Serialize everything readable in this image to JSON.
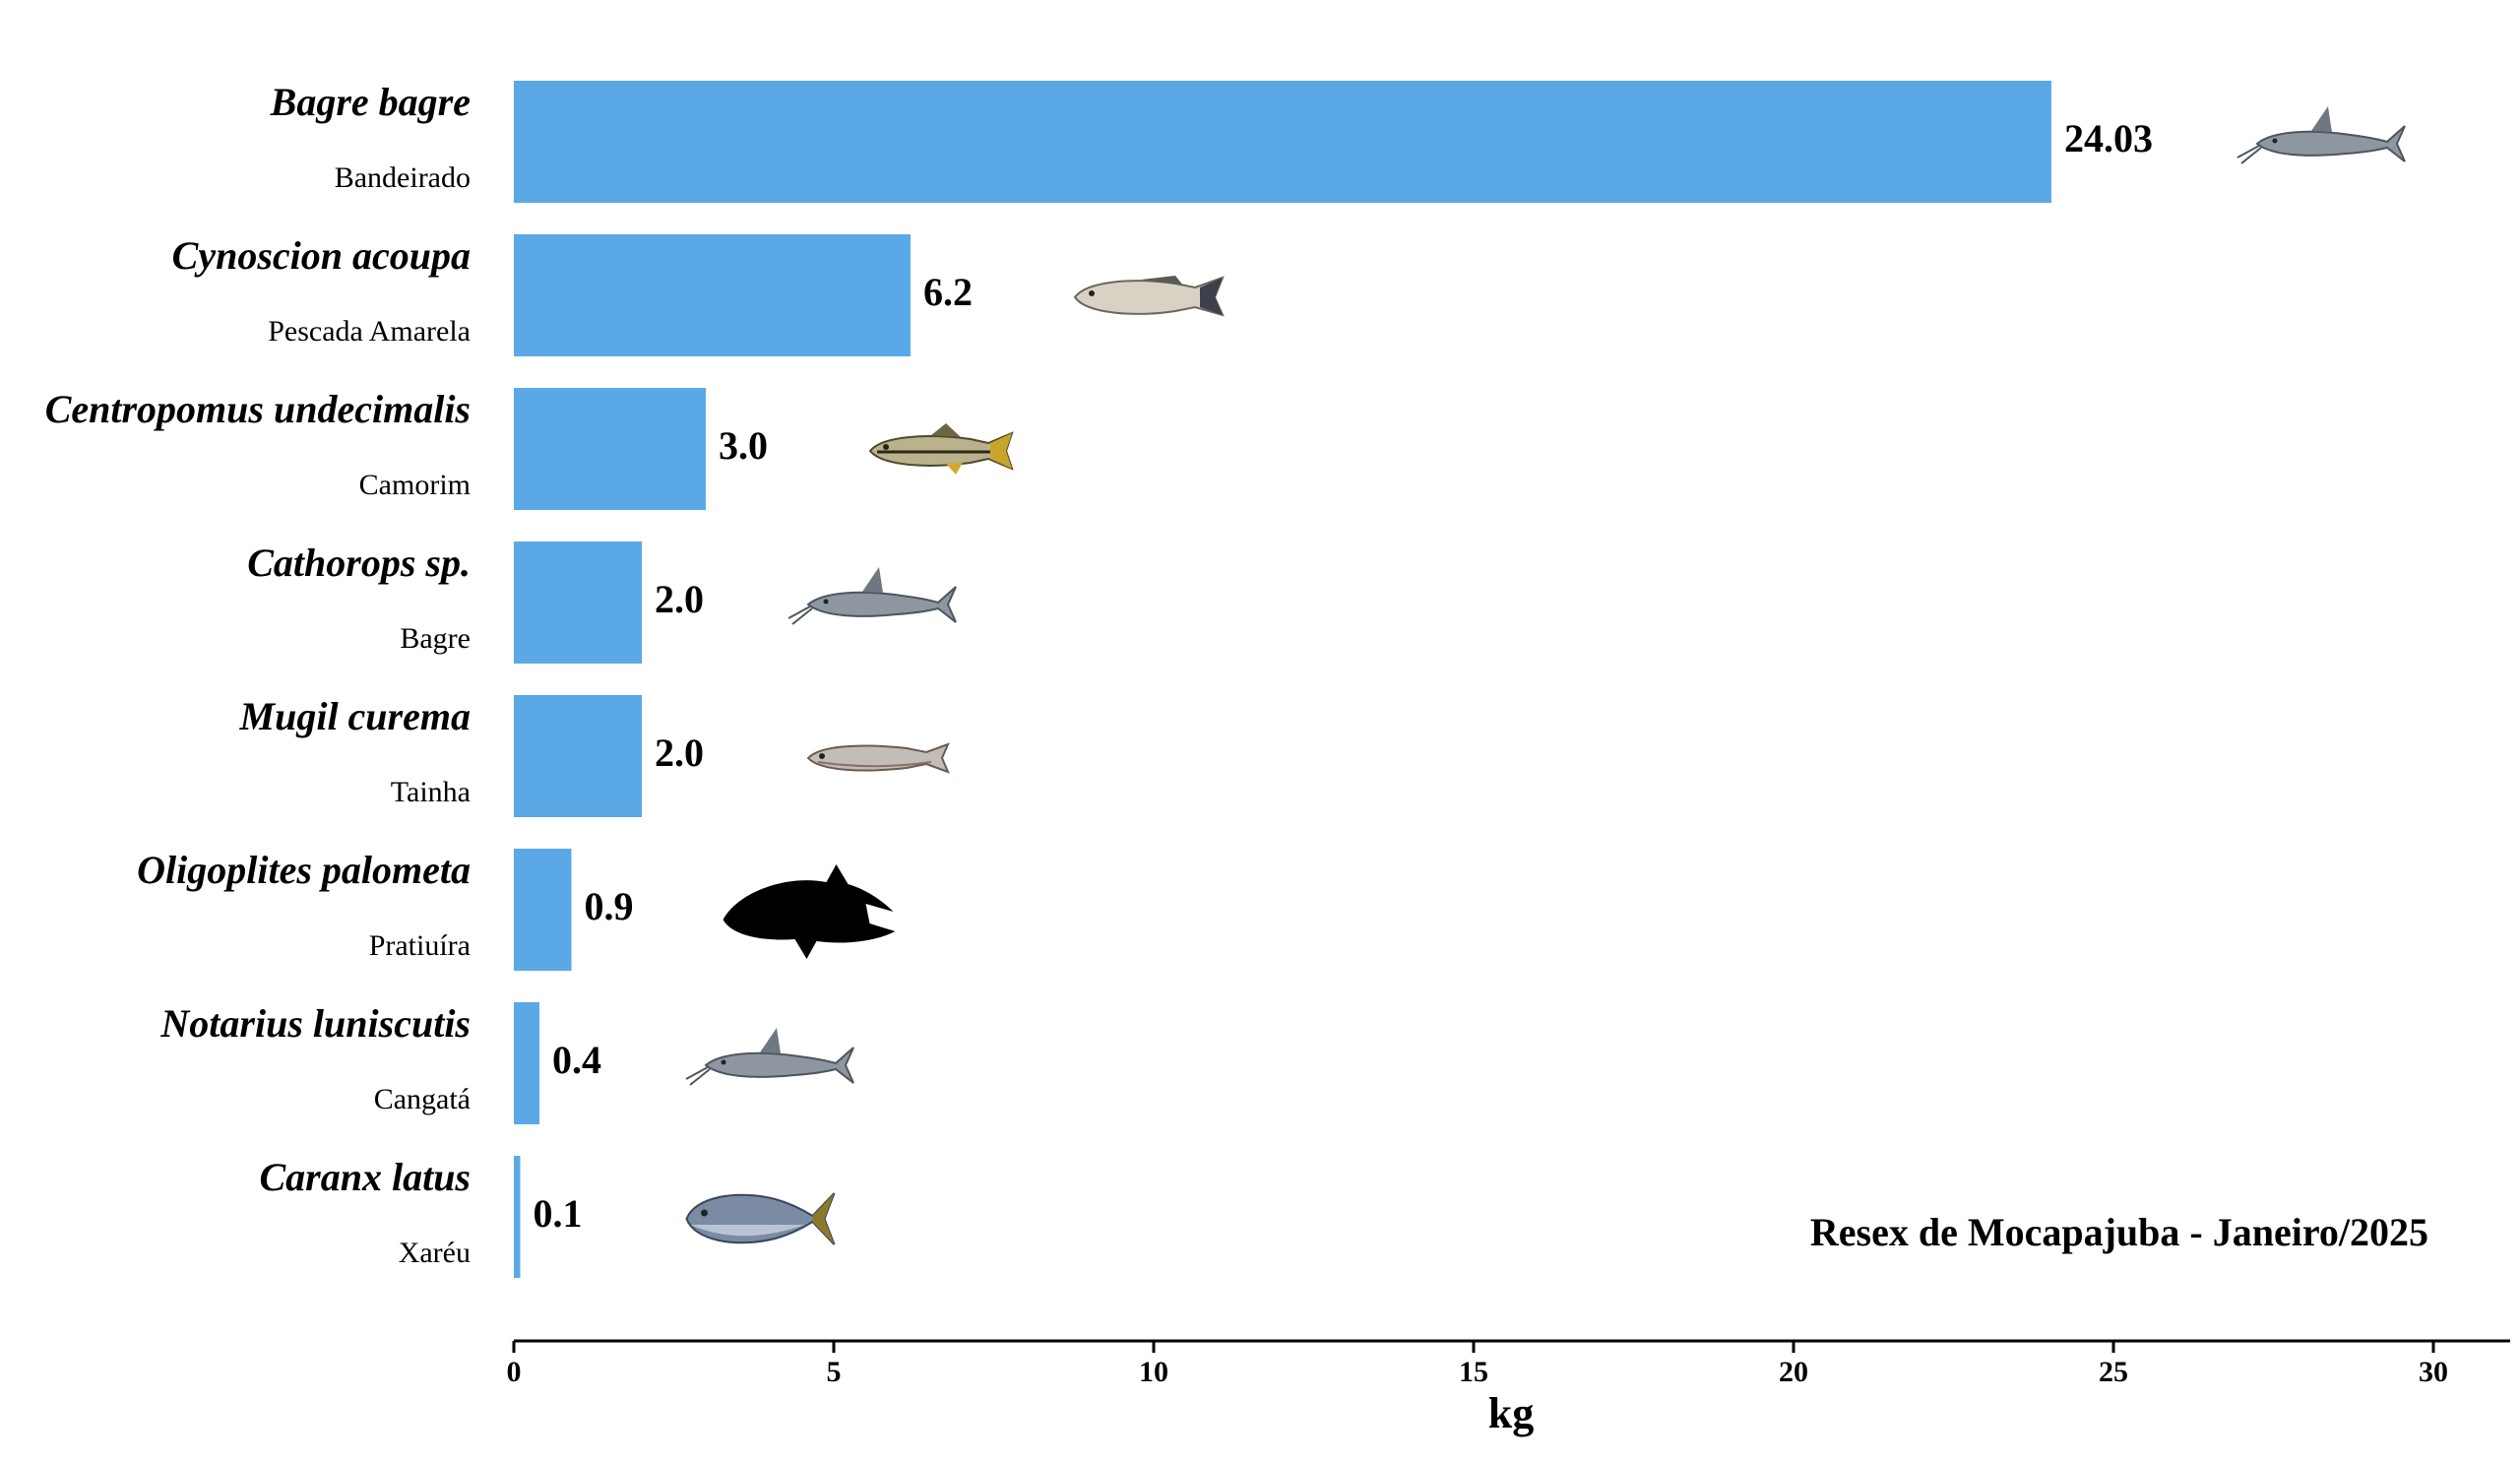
{
  "chart_data": {
    "type": "bar",
    "orientation": "horizontal",
    "categories": [
      {
        "scientific_name": "Bagre bagre",
        "common_name": "Bandeirado",
        "icon": "catfish-icon"
      },
      {
        "scientific_name": "Cynoscion acoupa",
        "common_name": "Pescada Amarela",
        "icon": "weakfish-icon"
      },
      {
        "scientific_name": "Centropomus undecimalis",
        "common_name": "Camorim",
        "icon": "snook-icon"
      },
      {
        "scientific_name": "Cathorops sp.",
        "common_name": "Bagre",
        "icon": "catfish-icon"
      },
      {
        "scientific_name": "Mugil curema",
        "common_name": "Tainha",
        "icon": "mullet-icon"
      },
      {
        "scientific_name": "Oligoplites palometa",
        "common_name": "Pratiuíra",
        "icon": "fish-silhouette-icon"
      },
      {
        "scientific_name": "Notarius luniscutis",
        "common_name": "Cangatá",
        "icon": "catfish-icon"
      },
      {
        "scientific_name": "Caranx latus",
        "common_name": "Xaréu",
        "icon": "jack-icon"
      }
    ],
    "values": [
      24.03,
      6.2,
      3.0,
      2.0,
      2.0,
      0.9,
      0.4,
      0.1
    ],
    "value_labels": [
      "24.03",
      "6.2",
      "3.0",
      "2.0",
      "2.0",
      "0.9",
      "0.4",
      "0.1"
    ],
    "xlabel": "kg",
    "ylabel": "",
    "xlim": [
      0,
      31.2
    ],
    "xticks": [
      0,
      5,
      10,
      15,
      20,
      25,
      30
    ],
    "annotation": "Resex de Mocapajuba - Janeiro/2025",
    "bar_color": "#5aa9e6",
    "grid": false
  }
}
